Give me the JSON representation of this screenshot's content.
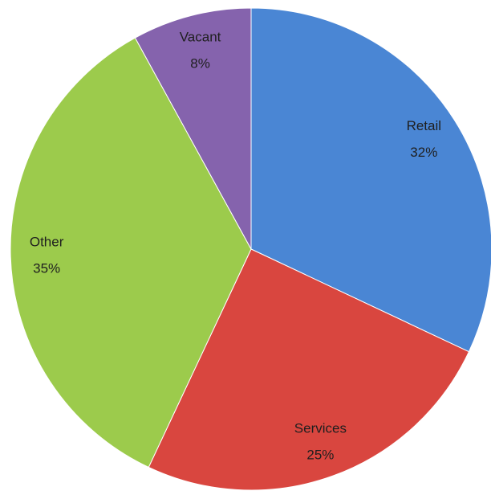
{
  "chart_data": {
    "type": "pie",
    "categories": [
      "Retail",
      "Services",
      "Other",
      "Vacant"
    ],
    "values": [
      32,
      25,
      35,
      8
    ],
    "value_labels": [
      "32%",
      "25%",
      "35%",
      "8%"
    ],
    "colors": [
      "#4a86d4",
      "#d9463f",
      "#9ccb4c",
      "#8563ad"
    ]
  }
}
